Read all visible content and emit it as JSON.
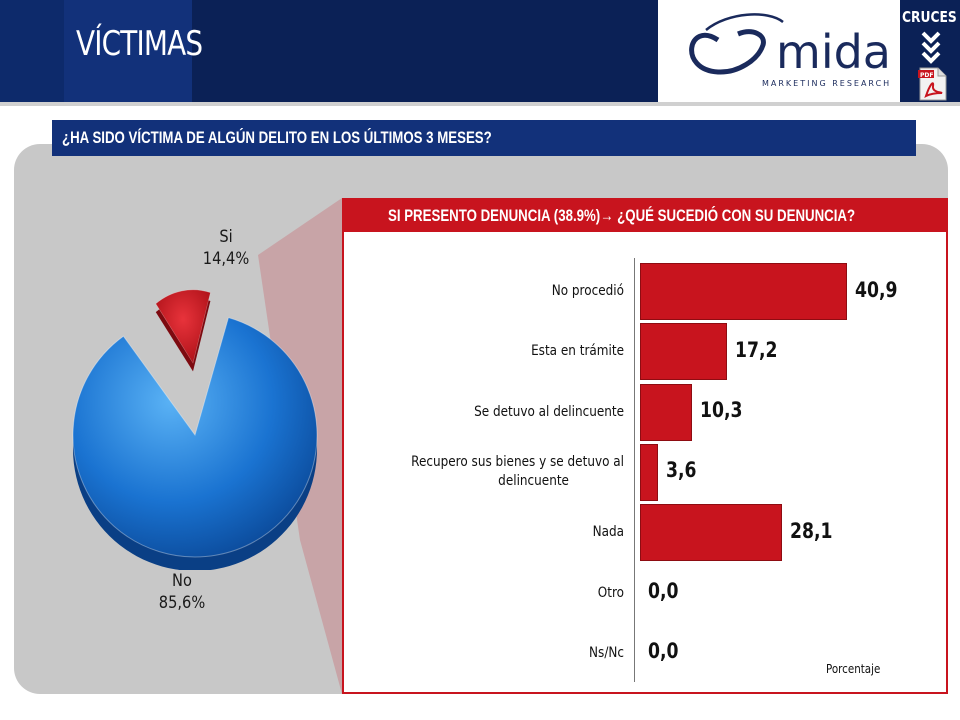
{
  "header": {
    "title": "VÍCTIMAS",
    "brand": "mida",
    "brand_subtitle": "MARKETING RESEARCH",
    "nav_label": "CRUCES",
    "pdf_badge": "PDF"
  },
  "question": "¿HA SIDO VÍCTIMA DE ALGÚN DELITO EN LOS ÚLTIMOS 3 MESES?",
  "subquestion": {
    "prefix": "SI PRESENTO DENUNCIA (38.9%)",
    "arrow": "→",
    "suffix": " ¿QUÉ SUCEDIÓ CON SU DENUNCIA?"
  },
  "colors": {
    "navy": "#0b2156",
    "red": "#c8141e",
    "blue": "#1a73d1",
    "gray_panel": "#c8c8c8"
  },
  "chart_data": [
    {
      "type": "pie",
      "slices": [
        {
          "label": "Si",
          "value": 14.4,
          "display": "14,4%",
          "color": "#c8141e"
        },
        {
          "label": "No",
          "value": 85.6,
          "display": "85,6%",
          "color": "#1a73d1"
        }
      ]
    },
    {
      "type": "bar",
      "orientation": "horizontal",
      "categories": [
        "No procedió",
        "Esta en trámite",
        "Se detuvo al delincuente",
        "Recupero sus bienes y se detuvo al delincuente",
        "Nada",
        "Otro",
        "Ns/Nc"
      ],
      "category_lines": [
        [
          "No procedió"
        ],
        [
          "Esta en trámite"
        ],
        [
          "Se detuvo al delincuente"
        ],
        [
          "Recupero sus bienes y se detuvo al",
          "delincuente"
        ],
        [
          "Nada"
        ],
        [
          "Otro"
        ],
        [
          "Ns/Nc"
        ]
      ],
      "values": [
        40.9,
        17.2,
        10.3,
        3.6,
        28.1,
        0.0,
        0.0
      ],
      "value_labels": [
        "40,9",
        "17,2",
        "10,3",
        "3,6",
        "28,1",
        "0,0",
        "0,0"
      ],
      "xlabel": "Porcentaje",
      "xlim": [
        0,
        45
      ],
      "color": "#c8141e"
    }
  ]
}
